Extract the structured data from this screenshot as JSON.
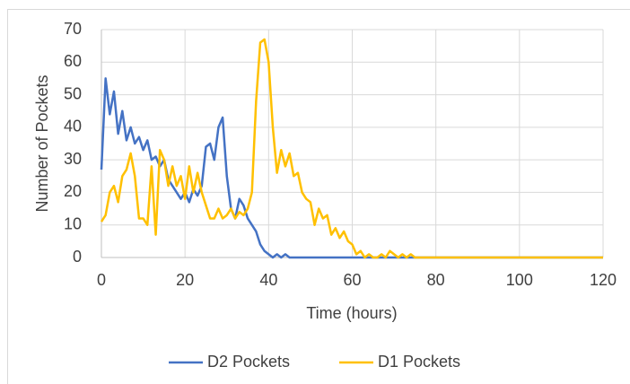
{
  "chart_data": {
    "type": "line",
    "x_label": "Time (hours)",
    "y_label": "Number of Pockets",
    "x": [
      0,
      1,
      2,
      3,
      4,
      5,
      6,
      7,
      8,
      9,
      10,
      11,
      12,
      13,
      14,
      15,
      16,
      17,
      18,
      19,
      20,
      21,
      22,
      23,
      24,
      25,
      26,
      27,
      28,
      29,
      30,
      31,
      32,
      33,
      34,
      35,
      36,
      37,
      38,
      39,
      40,
      41,
      42,
      43,
      44,
      45,
      46,
      47,
      48,
      49,
      50,
      51,
      52,
      53,
      54,
      55,
      56,
      57,
      58,
      59,
      60,
      61,
      62,
      63,
      64,
      65,
      66,
      67,
      68,
      69,
      70,
      71,
      72,
      73,
      74,
      75,
      76,
      80,
      90,
      100,
      110,
      120
    ],
    "series": [
      {
        "name": "D2 Pockets",
        "color": "#4472c4",
        "values": [
          27,
          55,
          44,
          51,
          38,
          45,
          36,
          40,
          35,
          37,
          33,
          36,
          30,
          31,
          28,
          30,
          24,
          22,
          20,
          18,
          20,
          17,
          21,
          19,
          22,
          34,
          35,
          30,
          40,
          43,
          25,
          15,
          12,
          18,
          16,
          12,
          10,
          8,
          4,
          2,
          1,
          0,
          1,
          0,
          1,
          0,
          0,
          0,
          0,
          0,
          0,
          0,
          0,
          0,
          0,
          0,
          0,
          0,
          0,
          0,
          0,
          0,
          0,
          0,
          0,
          0,
          0,
          0,
          0,
          0,
          0,
          0,
          0,
          0,
          0,
          0,
          0,
          0,
          0,
          0,
          0,
          0
        ]
      },
      {
        "name": "D1 Pockets",
        "color": "#ffc000",
        "values": [
          11,
          13,
          20,
          22,
          17,
          25,
          27,
          32,
          25,
          12,
          12,
          10,
          28,
          7,
          33,
          30,
          22,
          28,
          22,
          25,
          18,
          28,
          20,
          26,
          20,
          16,
          12,
          12,
          15,
          12,
          13,
          15,
          12,
          14,
          13,
          15,
          20,
          48,
          66,
          67,
          60,
          40,
          26,
          33,
          28,
          32,
          25,
          26,
          20,
          18,
          17,
          10,
          15,
          12,
          13,
          7,
          9,
          6,
          8,
          5,
          4,
          1,
          2,
          0,
          1,
          0,
          0,
          1,
          0,
          2,
          1,
          0,
          1,
          0,
          1,
          0,
          0,
          0,
          0,
          0,
          0,
          0
        ]
      }
    ],
    "xlim": [
      0,
      120
    ],
    "xticks": [
      0,
      20,
      40,
      60,
      80,
      100,
      120
    ],
    "ylim": [
      0,
      70
    ],
    "yticks": [
      0,
      10,
      20,
      30,
      40,
      50,
      60,
      70
    ],
    "grid": true,
    "legend": "bottom"
  }
}
